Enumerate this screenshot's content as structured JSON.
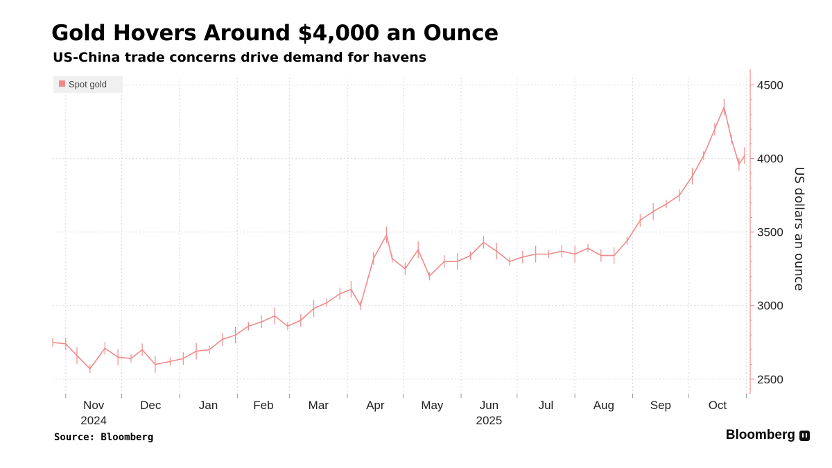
{
  "header": {
    "title": "Gold Hovers Around $4,000 an Ounce",
    "subtitle": "US-China trade concerns drive demand for havens"
  },
  "footer": {
    "source": "Source: Bloomberg",
    "brand": "Bloomberg"
  },
  "colors": {
    "series": "#f08a8a",
    "axis": "#f28c8c",
    "grid": "#d9d9d9",
    "legend_bg": "#f0f0f0"
  },
  "chart_data": {
    "type": "line",
    "title": "Gold Hovers Around $4,000 an Ounce",
    "subtitle": "US-China trade concerns drive demand for havens",
    "ylabel": "US dollars an ounce",
    "ylim": [
      2400,
      4550
    ],
    "yticks": [
      2500,
      3000,
      3500,
      4000,
      4500
    ],
    "ytick_labels": [
      "2500",
      "3000",
      "3500",
      "4000",
      "4500"
    ],
    "y_axis_side": "right",
    "grid": true,
    "legend_position": "top-left",
    "x_months": [
      {
        "label": "Nov",
        "year": "2024"
      },
      {
        "label": "Dec",
        "year": ""
      },
      {
        "label": "Jan",
        "year": ""
      },
      {
        "label": "Feb",
        "year": ""
      },
      {
        "label": "Mar",
        "year": ""
      },
      {
        "label": "Apr",
        "year": ""
      },
      {
        "label": "May",
        "year": ""
      },
      {
        "label": "Jun",
        "year": "2025"
      },
      {
        "label": "Jul",
        "year": ""
      },
      {
        "label": "Aug",
        "year": ""
      },
      {
        "label": "Sep",
        "year": ""
      },
      {
        "label": "Oct",
        "year": ""
      }
    ],
    "series": [
      {
        "name": "Spot gold",
        "x": [
          "2024-10-25",
          "2024-11-01",
          "2024-11-07",
          "2024-11-14",
          "2024-11-22",
          "2024-11-29",
          "2024-12-06",
          "2024-12-12",
          "2024-12-19",
          "2024-12-27",
          "2025-01-03",
          "2025-01-10",
          "2025-01-17",
          "2025-01-24",
          "2025-01-31",
          "2025-02-07",
          "2025-02-14",
          "2025-02-21",
          "2025-02-28",
          "2025-03-07",
          "2025-03-14",
          "2025-03-21",
          "2025-03-28",
          "2025-04-03",
          "2025-04-08",
          "2025-04-15",
          "2025-04-22",
          "2025-04-25",
          "2025-05-02",
          "2025-05-09",
          "2025-05-15",
          "2025-05-23",
          "2025-05-30",
          "2025-06-06",
          "2025-06-13",
          "2025-06-20",
          "2025-06-27",
          "2025-07-04",
          "2025-07-11",
          "2025-07-18",
          "2025-07-25",
          "2025-08-01",
          "2025-08-08",
          "2025-08-15",
          "2025-08-22",
          "2025-08-29",
          "2025-09-05",
          "2025-09-12",
          "2025-09-19",
          "2025-09-26",
          "2025-10-03",
          "2025-10-09",
          "2025-10-15",
          "2025-10-20",
          "2025-10-24",
          "2025-10-28",
          "2025-10-31"
        ],
        "values": [
          2750,
          2740,
          2660,
          2570,
          2710,
          2650,
          2640,
          2700,
          2600,
          2620,
          2640,
          2690,
          2700,
          2770,
          2800,
          2860,
          2890,
          2930,
          2860,
          2900,
          2980,
          3020,
          3080,
          3110,
          3000,
          3320,
          3480,
          3320,
          3250,
          3380,
          3200,
          3300,
          3300,
          3340,
          3430,
          3370,
          3300,
          3330,
          3350,
          3350,
          3370,
          3350,
          3390,
          3340,
          3340,
          3440,
          3580,
          3640,
          3690,
          3750,
          3880,
          4020,
          4200,
          4350,
          4130,
          3960,
          4020
        ]
      }
    ]
  }
}
